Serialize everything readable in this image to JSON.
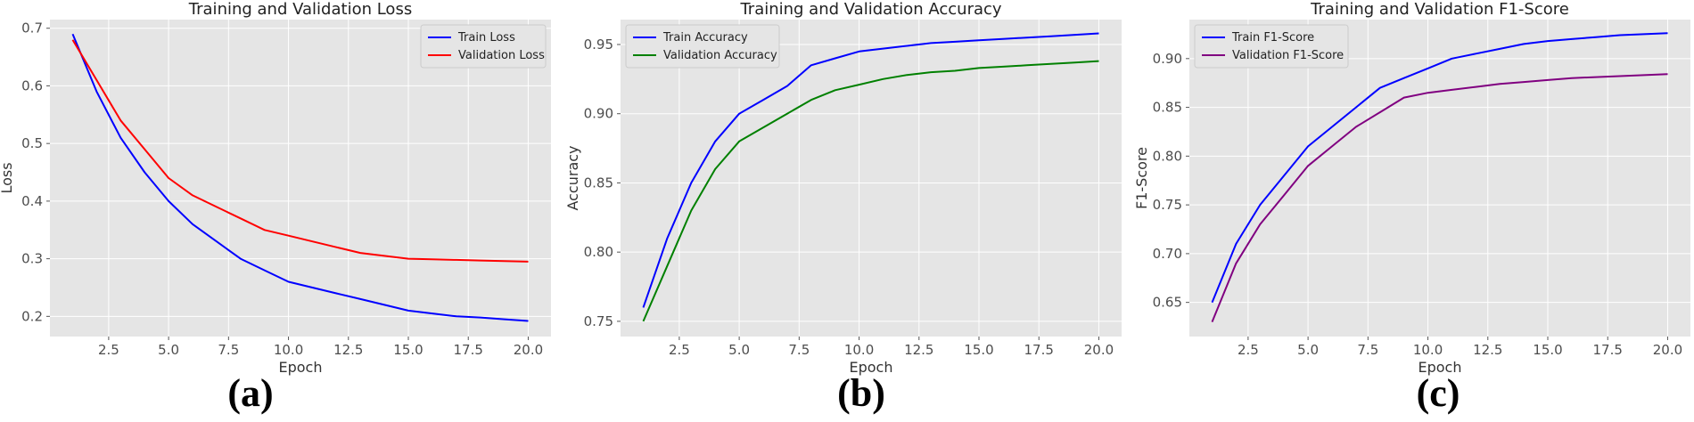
{
  "chart_data": [
    {
      "type": "line",
      "title": "Training and Validation Loss",
      "xlabel": "Epoch",
      "ylabel": "Loss",
      "xlim": [
        0.05,
        20.95
      ],
      "ylim": [
        0.165,
        0.715
      ],
      "xticks": [
        2.5,
        5.0,
        7.5,
        10.0,
        12.5,
        15.0,
        17.5,
        20.0
      ],
      "xtick_labels": [
        "2.5",
        "5.0",
        "7.5",
        "10.0",
        "12.5",
        "15.0",
        "17.5",
        "20.0"
      ],
      "yticks": [
        0.2,
        0.3,
        0.4,
        0.5,
        0.6,
        0.7
      ],
      "ytick_labels": [
        "0.2",
        "0.3",
        "0.4",
        "0.5",
        "0.6",
        "0.7"
      ],
      "grid": true,
      "legend": "top-right",
      "caption": "(a)",
      "series": [
        {
          "name": "Train Loss",
          "color": "#0000ff",
          "x": [
            1,
            2,
            3,
            4,
            5,
            6,
            7,
            8,
            9,
            10,
            11,
            12,
            13,
            14,
            15,
            16,
            17,
            18,
            19,
            20
          ],
          "values": [
            0.69,
            0.59,
            0.51,
            0.45,
            0.4,
            0.36,
            0.33,
            0.3,
            0.28,
            0.26,
            0.25,
            0.24,
            0.23,
            0.22,
            0.21,
            0.205,
            0.2,
            0.198,
            0.195,
            0.192
          ]
        },
        {
          "name": "Validation Loss",
          "color": "#ff0000",
          "x": [
            1,
            2,
            3,
            4,
            5,
            6,
            7,
            8,
            9,
            10,
            11,
            12,
            13,
            14,
            15,
            16,
            17,
            18,
            19,
            20
          ],
          "values": [
            0.68,
            0.61,
            0.54,
            0.49,
            0.44,
            0.41,
            0.39,
            0.37,
            0.35,
            0.34,
            0.33,
            0.32,
            0.31,
            0.305,
            0.3,
            0.299,
            0.298,
            0.297,
            0.296,
            0.295
          ]
        }
      ]
    },
    {
      "type": "line",
      "title": "Training and Validation Accuracy",
      "xlabel": "Epoch",
      "ylabel": "Accuracy",
      "xlim": [
        0.05,
        20.95
      ],
      "ylim": [
        0.739,
        0.968
      ],
      "xticks": [
        2.5,
        5.0,
        7.5,
        10.0,
        12.5,
        15.0,
        17.5,
        20.0
      ],
      "xtick_labels": [
        "2.5",
        "5.0",
        "7.5",
        "10.0",
        "12.5",
        "15.0",
        "17.5",
        "20.0"
      ],
      "yticks": [
        0.75,
        0.8,
        0.85,
        0.9,
        0.95
      ],
      "ytick_labels": [
        "0.75",
        "0.80",
        "0.85",
        "0.90",
        "0.95"
      ],
      "grid": true,
      "legend": "top-left",
      "caption": "(b)",
      "series": [
        {
          "name": "Train Accuracy",
          "color": "#0000ff",
          "x": [
            1,
            2,
            3,
            4,
            5,
            6,
            7,
            8,
            9,
            10,
            11,
            12,
            13,
            14,
            15,
            16,
            17,
            18,
            19,
            20
          ],
          "values": [
            0.76,
            0.81,
            0.85,
            0.88,
            0.9,
            0.91,
            0.92,
            0.935,
            0.94,
            0.945,
            0.947,
            0.949,
            0.951,
            0.952,
            0.953,
            0.954,
            0.955,
            0.956,
            0.957,
            0.958
          ]
        },
        {
          "name": "Validation Accuracy",
          "color": "#008000",
          "x": [
            1,
            2,
            3,
            4,
            5,
            6,
            7,
            8,
            9,
            10,
            11,
            12,
            13,
            14,
            15,
            16,
            17,
            18,
            19,
            20
          ],
          "values": [
            0.75,
            0.79,
            0.83,
            0.86,
            0.88,
            0.89,
            0.9,
            0.91,
            0.917,
            0.921,
            0.925,
            0.928,
            0.93,
            0.931,
            0.933,
            0.934,
            0.935,
            0.936,
            0.937,
            0.938
          ]
        }
      ]
    },
    {
      "type": "line",
      "title": "Training and Validation F1-Score",
      "xlabel": "Epoch",
      "ylabel": "F1-Score",
      "xlim": [
        0.05,
        20.95
      ],
      "ylim": [
        0.615,
        0.94
      ],
      "xticks": [
        2.5,
        5.0,
        7.5,
        10.0,
        12.5,
        15.0,
        17.5,
        20.0
      ],
      "xtick_labels": [
        "2.5",
        "5.0",
        "7.5",
        "10.0",
        "12.5",
        "15.0",
        "17.5",
        "20.0"
      ],
      "yticks": [
        0.65,
        0.7,
        0.75,
        0.8,
        0.85,
        0.9
      ],
      "ytick_labels": [
        "0.65",
        "0.70",
        "0.75",
        "0.80",
        "0.85",
        "0.90"
      ],
      "grid": true,
      "legend": "top-left",
      "caption": "(c)",
      "series": [
        {
          "name": "Train F1-Score",
          "color": "#0000ff",
          "x": [
            1,
            2,
            3,
            4,
            5,
            6,
            7,
            8,
            9,
            10,
            11,
            12,
            13,
            14,
            15,
            16,
            17,
            18,
            19,
            20
          ],
          "values": [
            0.65,
            0.71,
            0.75,
            0.78,
            0.81,
            0.83,
            0.85,
            0.87,
            0.88,
            0.89,
            0.9,
            0.905,
            0.91,
            0.915,
            0.918,
            0.92,
            0.922,
            0.924,
            0.925,
            0.926
          ]
        },
        {
          "name": "Validation F1-Score",
          "color": "#800080",
          "x": [
            1,
            2,
            3,
            4,
            5,
            6,
            7,
            8,
            9,
            10,
            11,
            12,
            13,
            14,
            15,
            16,
            17,
            18,
            19,
            20
          ],
          "values": [
            0.63,
            0.69,
            0.73,
            0.76,
            0.79,
            0.81,
            0.83,
            0.845,
            0.86,
            0.865,
            0.868,
            0.871,
            0.874,
            0.876,
            0.878,
            0.88,
            0.881,
            0.882,
            0.883,
            0.884
          ]
        }
      ]
    }
  ]
}
